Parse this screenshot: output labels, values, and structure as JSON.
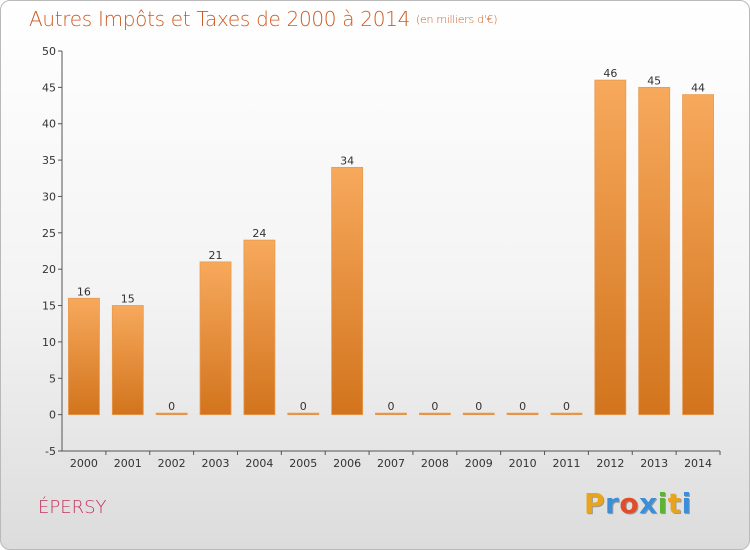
{
  "header": {
    "title": "Autres Impôts et Taxes de 2000 à 2014",
    "unit": "(en milliers d'€)"
  },
  "commune": "ÉPERSY",
  "logo": {
    "letters": [
      "P",
      "r",
      "o",
      "x",
      "i",
      "t",
      "i"
    ],
    "colors": [
      "#e8a41c",
      "#3a8fd8",
      "#e14d2a",
      "#3a8fd8",
      "#5bb531",
      "#e8a41c",
      "#3a8fd8"
    ]
  },
  "chart_data": {
    "type": "bar",
    "title": "Autres Impôts et Taxes de 2000 à 2014",
    "subtitle": "(en milliers d'€)",
    "categories": [
      "2000",
      "2001",
      "2002",
      "2003",
      "2004",
      "2005",
      "2006",
      "2007",
      "2008",
      "2009",
      "2010",
      "2011",
      "2012",
      "2013",
      "2014"
    ],
    "values": [
      16,
      15,
      0,
      21,
      24,
      0,
      34,
      0,
      0,
      0,
      0,
      0,
      46,
      45,
      44
    ],
    "data_labels": [
      "16",
      "15",
      "0",
      "21",
      "24",
      "0",
      "34",
      "0",
      "0",
      "0",
      "0",
      "0",
      "46",
      "45",
      "44"
    ],
    "yticks": [
      "-5",
      "0",
      "5",
      "10",
      "15",
      "20",
      "25",
      "30",
      "35",
      "40",
      "45",
      "50"
    ],
    "ylim": [
      -5,
      50
    ],
    "grid": false,
    "bar_color_top": "#f7a95c",
    "bar_color_bottom": "#d2741d"
  }
}
